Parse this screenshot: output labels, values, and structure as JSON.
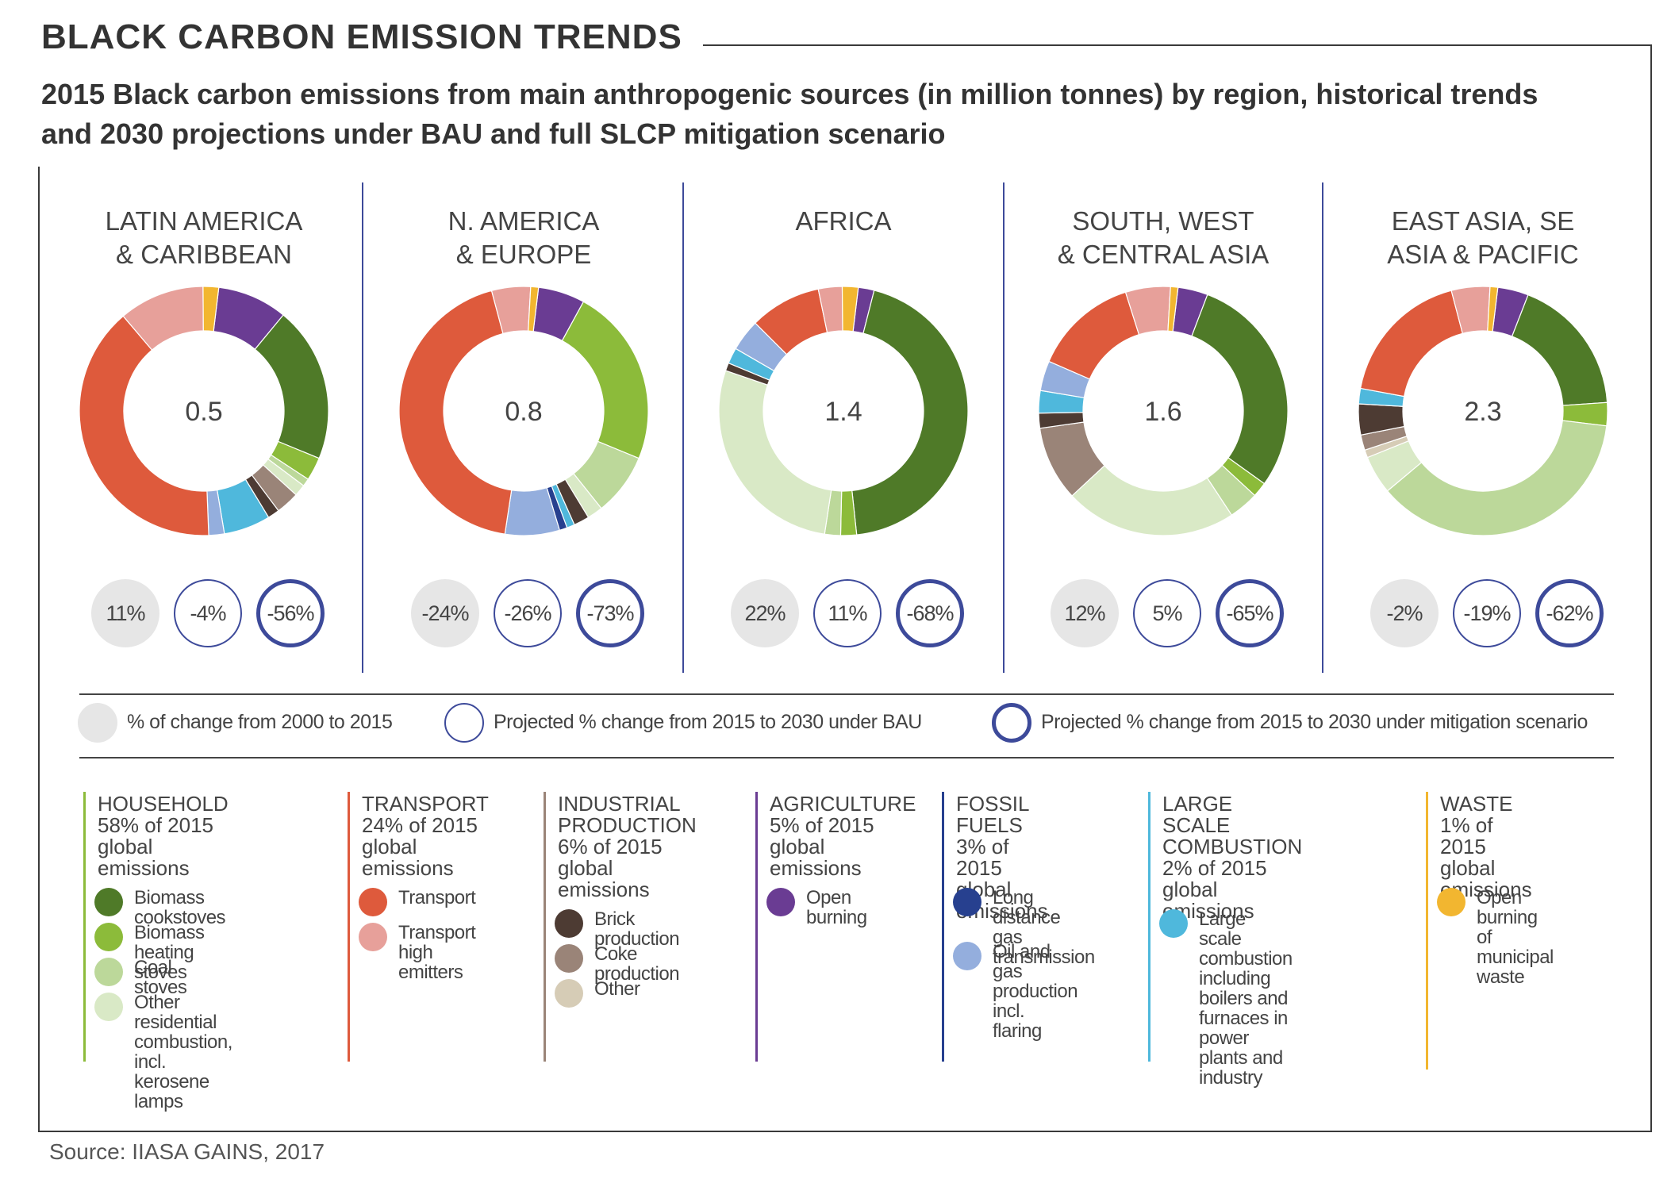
{
  "title": "BLACK CARBON EMISSION TRENDS",
  "subtitle": "2015 Black carbon emissions from main anthropogenic sources (in million tonnes) by region, historical trends and 2030 projections under BAU and full SLCP mitigation scenario",
  "source": "Source: IIASA GAINS, 2017",
  "colors": {
    "biomass_cookstoves": "#4f7a28",
    "biomass_heating_stoves": "#8cbb3a",
    "coal_stoves": "#bcd89a",
    "other_residential": "#d9e9c6",
    "transport": "#de5a3c",
    "transport_high": "#e7a09a",
    "brick": "#4d3b33",
    "coke": "#9a8478",
    "industry_other": "#d6ccb6",
    "open_burning_ag": "#6a3c93",
    "long_distance_gas": "#27408f",
    "oil_gas": "#94aedd",
    "large_scale": "#4fb8dc",
    "waste": "#f2b630",
    "frame_blue": "#3d4a9a"
  },
  "chart_data": {
    "type": "pie",
    "variant": "donut",
    "unit": "million tonnes",
    "regions": [
      {
        "name": "LATIN AMERICA\n& CARIBBEAN",
        "total": "0.5",
        "changes": [
          "11%",
          "-4%",
          "-56%"
        ],
        "segments": [
          {
            "key": "open_burning_ag",
            "value": 9
          },
          {
            "key": "biomass_cookstoves",
            "value": 20
          },
          {
            "key": "biomass_heating_stoves",
            "value": 3
          },
          {
            "key": "coal_stoves",
            "value": 1
          },
          {
            "key": "other_residential",
            "value": 1.5
          },
          {
            "key": "coke",
            "value": 3
          },
          {
            "key": "brick",
            "value": 1.5
          },
          {
            "key": "large_scale",
            "value": 6
          },
          {
            "key": "oil_gas",
            "value": 2
          },
          {
            "key": "transport",
            "value": 39
          },
          {
            "key": "transport_high",
            "value": 11
          },
          {
            "key": "waste",
            "value": 2
          }
        ]
      },
      {
        "name": "N. AMERICA\n& EUROPE",
        "total": "0.8",
        "changes": [
          "-24%",
          "-26%",
          "-73%"
        ],
        "segments": [
          {
            "key": "open_burning_ag",
            "value": 6
          },
          {
            "key": "biomass_heating_stoves",
            "value": 23
          },
          {
            "key": "coal_stoves",
            "value": 8
          },
          {
            "key": "other_residential",
            "value": 2
          },
          {
            "key": "brick",
            "value": 2
          },
          {
            "key": "large_scale",
            "value": 1
          },
          {
            "key": "long_distance_gas",
            "value": 1
          },
          {
            "key": "oil_gas",
            "value": 7
          },
          {
            "key": "transport",
            "value": 43
          },
          {
            "key": "transport_high",
            "value": 5
          },
          {
            "key": "waste",
            "value": 1
          }
        ]
      },
      {
        "name": "AFRICA",
        "total": "1.4",
        "changes": [
          "22%",
          "11%",
          "-68%"
        ],
        "segments": [
          {
            "key": "open_burning_ag",
            "value": 2
          },
          {
            "key": "biomass_cookstoves",
            "value": 43
          },
          {
            "key": "biomass_heating_stoves",
            "value": 2
          },
          {
            "key": "coal_stoves",
            "value": 2
          },
          {
            "key": "other_residential",
            "value": 27
          },
          {
            "key": "brick",
            "value": 1
          },
          {
            "key": "large_scale",
            "value": 2
          },
          {
            "key": "oil_gas",
            "value": 4
          },
          {
            "key": "transport",
            "value": 9
          },
          {
            "key": "transport_high",
            "value": 3
          },
          {
            "key": "waste",
            "value": 2
          }
        ]
      },
      {
        "name": "SOUTH, WEST\n& CENTRAL ASIA",
        "total": "1.6",
        "changes": [
          "12%",
          "5%",
          "-65%"
        ],
        "segments": [
          {
            "key": "open_burning_ag",
            "value": 4
          },
          {
            "key": "biomass_cookstoves",
            "value": 30
          },
          {
            "key": "biomass_heating_stoves",
            "value": 2
          },
          {
            "key": "coal_stoves",
            "value": 4
          },
          {
            "key": "other_residential",
            "value": 23
          },
          {
            "key": "coke",
            "value": 10
          },
          {
            "key": "brick",
            "value": 2
          },
          {
            "key": "large_scale",
            "value": 3
          },
          {
            "key": "oil_gas",
            "value": 4
          },
          {
            "key": "transport",
            "value": 14
          },
          {
            "key": "transport_high",
            "value": 6
          },
          {
            "key": "waste",
            "value": 1
          }
        ]
      },
      {
        "name": "EAST ASIA, SE\nASIA & PACIFIC",
        "total": "2.3",
        "changes": [
          "-2%",
          "-19%",
          "-62%"
        ],
        "segments": [
          {
            "key": "open_burning_ag",
            "value": 4
          },
          {
            "key": "biomass_cookstoves",
            "value": 18
          },
          {
            "key": "biomass_heating_stoves",
            "value": 3
          },
          {
            "key": "coal_stoves",
            "value": 37
          },
          {
            "key": "other_residential",
            "value": 5
          },
          {
            "key": "industry_other",
            "value": 1
          },
          {
            "key": "coke",
            "value": 2
          },
          {
            "key": "brick",
            "value": 4
          },
          {
            "key": "large_scale",
            "value": 2
          },
          {
            "key": "transport",
            "value": 18
          },
          {
            "key": "transport_high",
            "value": 5
          },
          {
            "key": "waste",
            "value": 1
          }
        ]
      }
    ]
  },
  "change_key": [
    {
      "style": "filled",
      "label": "% of change from 2000 to 2015"
    },
    {
      "style": "thin",
      "label": "Projected % change from 2015 to 2030 under BAU"
    },
    {
      "style": "thick",
      "label": "Projected % change from 2015 to 2030 under mitigation scenario"
    }
  ],
  "categories": [
    {
      "id": "household",
      "bar_color": "#8cbb3a",
      "heading": "HOUSEHOLD\n58% of 2015\nglobal emissions",
      "items": [
        {
          "key": "biomass_cookstoves",
          "label": "Biomass cookstoves"
        },
        {
          "key": "biomass_heating_stoves",
          "label": "Biomass heating stoves"
        },
        {
          "key": "coal_stoves",
          "label": "Coal stoves"
        },
        {
          "key": "other_residential",
          "label": "Other residential\ncombustion,\nincl. kerosene lamps"
        }
      ]
    },
    {
      "id": "transport",
      "bar_color": "#de5a3c",
      "heading": "TRANSPORT\n24% of 2015\nglobal emissions",
      "items": [
        {
          "key": "transport",
          "label": "Transport"
        },
        {
          "key": "transport_high",
          "label": "Transport high\nemitters"
        }
      ]
    },
    {
      "id": "industrial",
      "bar_color": "#9a8478",
      "heading": "INDUSTRIAL\nPRODUCTION\n6% of 2015\nglobal emissions",
      "items": [
        {
          "key": "brick",
          "label": "Brick production"
        },
        {
          "key": "coke",
          "label": "Coke production"
        },
        {
          "key": "industry_other",
          "label": "Other"
        }
      ]
    },
    {
      "id": "agriculture",
      "bar_color": "#6a3c93",
      "heading": "AGRICULTURE\n5% of 2015\nglobal emissions",
      "items": [
        {
          "key": "open_burning_ag",
          "label": "Open burning"
        }
      ]
    },
    {
      "id": "fossil",
      "bar_color": "#27408f",
      "heading": "FOSSIL FUELS\n3% of 2015\nglobal emissions",
      "items": [
        {
          "key": "long_distance_gas",
          "label": "Long distance\ngas transmission"
        },
        {
          "key": "oil_gas",
          "label": "Oil and gas\nproduction\nincl. flaring"
        }
      ]
    },
    {
      "id": "large_scale",
      "bar_color": "#4fb8dc",
      "heading": "LARGE SCALE\nCOMBUSTION\n2% of 2015\nglobal emissions",
      "items": [
        {
          "key": "large_scale",
          "label": "Large scale combustion\nincluding boilers and\nfurnaces in power\nplants and industry"
        }
      ]
    },
    {
      "id": "waste",
      "bar_color": "#f2b630",
      "heading": "WASTE\n1% of 2015\nglobal emissions",
      "items": [
        {
          "key": "waste",
          "label": "Open burning\nof municipal\nwaste"
        }
      ]
    }
  ]
}
